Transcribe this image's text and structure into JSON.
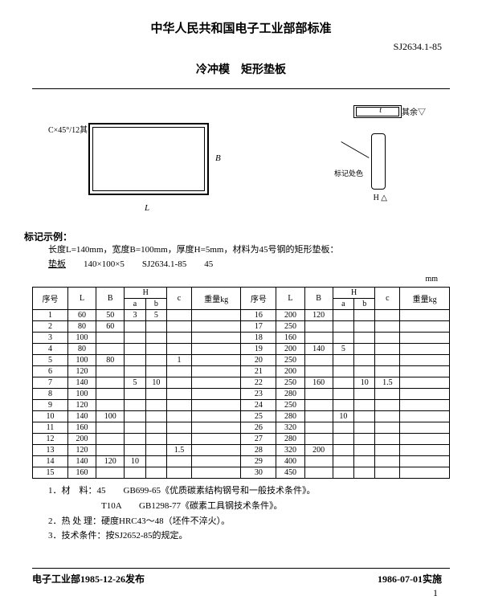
{
  "header": {
    "title": "中华人民共和国电子工业部部标准",
    "standard_num": "SJ2634.1-85",
    "doc_title": "冷冲模　矩形垫板"
  },
  "diagram": {
    "chamfer": "C×45°/12其",
    "dim_L": "L",
    "dim_B": "B",
    "top_label": "其余▽",
    "side_label": "标记处色",
    "side_dim": "H  △",
    "t_label": "t"
  },
  "example": {
    "label": "标记示例：",
    "line1": "长度L=140mm，宽度B=100mm，厚度H=5mm，材料为45号钢的矩形垫板：",
    "line2_a": "垫板",
    "line2_b": "140×100×5　　SJ2634.1-85　　45"
  },
  "unit": "mm",
  "table": {
    "headers": [
      "序号",
      "L",
      "B",
      "H",
      "",
      "c",
      "重量kg",
      "序号",
      "L",
      "B",
      "H",
      "",
      "c",
      "重量kg"
    ],
    "sub_headers": [
      "",
      "",
      "",
      "a",
      "b",
      "",
      "",
      "",
      "",
      "",
      "a",
      "b",
      "",
      ""
    ],
    "rows": [
      [
        "1",
        "60",
        "50",
        "3",
        "5",
        "",
        "",
        "16",
        "200",
        "120",
        "",
        "",
        "",
        ""
      ],
      [
        "2",
        "80",
        "60",
        "",
        "",
        "",
        "",
        "17",
        "250",
        "",
        "",
        "",
        "",
        ""
      ],
      [
        "3",
        "100",
        "",
        "",
        "",
        "",
        "",
        "18",
        "160",
        "",
        "",
        "",
        "",
        ""
      ],
      [
        "4",
        "80",
        "",
        "",
        "",
        "",
        "",
        "19",
        "200",
        "140",
        "5",
        "",
        "",
        ""
      ],
      [
        "5",
        "100",
        "80",
        "",
        "",
        "1",
        "",
        "20",
        "250",
        "",
        "",
        "",
        "",
        ""
      ],
      [
        "6",
        "120",
        "",
        "",
        "",
        "",
        "",
        "21",
        "200",
        "",
        "",
        "",
        "",
        ""
      ],
      [
        "7",
        "140",
        "",
        "5",
        "10",
        "",
        "",
        "22",
        "250",
        "160",
        "",
        "10",
        "1.5",
        ""
      ],
      [
        "8",
        "100",
        "",
        "",
        "",
        "",
        "",
        "23",
        "280",
        "",
        "",
        "",
        "",
        ""
      ],
      [
        "9",
        "120",
        "",
        "",
        "",
        "",
        "",
        "24",
        "250",
        "",
        "",
        "",
        "",
        ""
      ],
      [
        "10",
        "140",
        "100",
        "",
        "",
        "",
        "",
        "25",
        "280",
        "",
        "10",
        "",
        "",
        ""
      ],
      [
        "11",
        "160",
        "",
        "",
        "",
        "",
        "",
        "26",
        "320",
        "",
        "",
        "",
        "",
        ""
      ],
      [
        "12",
        "200",
        "",
        "",
        "",
        "",
        "",
        "27",
        "280",
        "",
        "",
        "",
        "",
        ""
      ],
      [
        "13",
        "120",
        "",
        "",
        "",
        "1.5",
        "",
        "28",
        "320",
        "200",
        "",
        "",
        "",
        ""
      ],
      [
        "14",
        "140",
        "120",
        "10",
        "",
        "",
        "",
        "29",
        "400",
        "",
        "",
        "",
        "",
        ""
      ],
      [
        "15",
        "160",
        "",
        "",
        "",
        "",
        "",
        "30",
        "450",
        "",
        "",
        "",
        "",
        ""
      ]
    ],
    "merged_B_left": {
      "1": "50",
      "2": "60",
      "5": "80",
      "10": "100",
      "14": "120"
    },
    "merged_B_right": {
      "1": "120",
      "4": "140",
      "7": "160",
      "13": "200"
    }
  },
  "notes": {
    "n1": "1．材　料：45　　GB699-65《优质碳素结构钢号和一般技术条件》。",
    "n1b": "　　　　　　T10A　　GB1298-77《碳素工具钢技术条件》。",
    "n2": "2．热 处 理：硬度HRC43～48（坯件不淬火）。",
    "n3": "3．技术条件：按SJ2652-85的规定。"
  },
  "footer": {
    "left": "电子工业部1985-12-26发布",
    "right": "1986-07-01实施",
    "page": "1"
  }
}
